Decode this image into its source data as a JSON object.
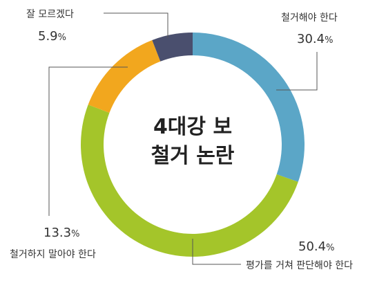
{
  "chart_data": {
    "type": "pie",
    "variant": "donut",
    "title_lines": [
      "4대강 보",
      "철거 논란"
    ],
    "series": [
      {
        "label": "철거해야 한다",
        "value": 30.4,
        "display": "30.4",
        "color": "#5ba6c7"
      },
      {
        "label": "평가를 거쳐 판단해야 한다",
        "value": 50.4,
        "display": "50.4",
        "color": "#a4c52a"
      },
      {
        "label": "철거하지 말아야 한다",
        "value": 13.3,
        "display": "13.3",
        "color": "#f2a71e"
      },
      {
        "label": "잘 모르겠다",
        "value": 5.9,
        "display": "5.9",
        "color": "#4a4f6e"
      }
    ],
    "unit": "%",
    "legend": "none",
    "start_angle": "12-o'clock",
    "direction": "clockwise"
  }
}
